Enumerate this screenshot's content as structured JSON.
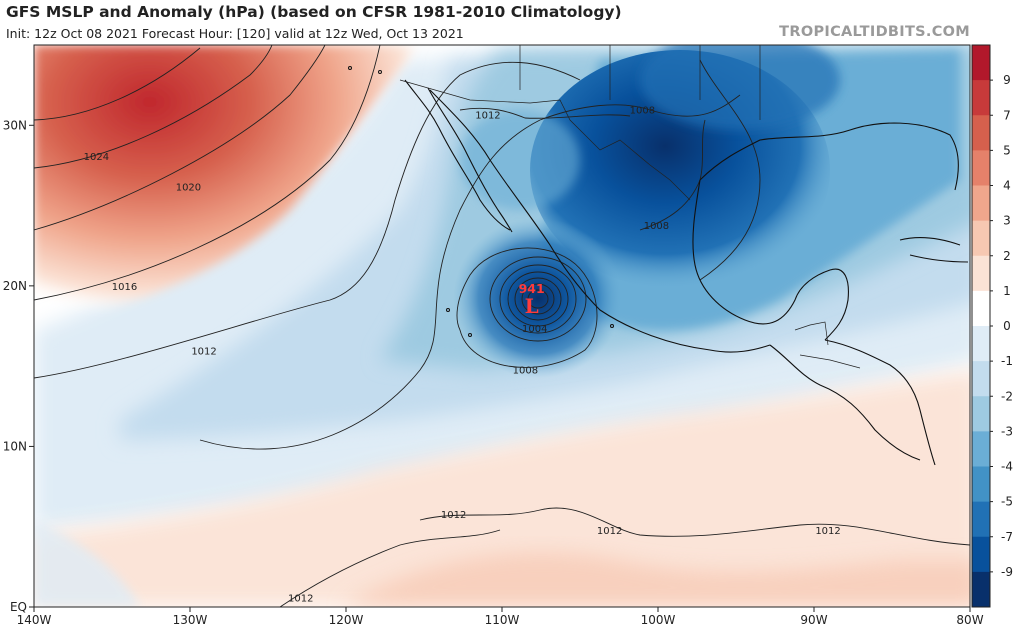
{
  "header": {
    "title": "GFS MSLP and Anomaly (hPa) (based on CFSR 1981-2010 Climatology)",
    "subtitle": "Init: 12z Oct 08 2021   Forecast Hour: [120]   valid at 12z Wed, Oct 13 2021",
    "watermark": "TROPICALTIDBITS.COM"
  },
  "map": {
    "lon_range": [
      -140,
      -80
    ],
    "lat_range": [
      0,
      35
    ],
    "lon_ticks": [
      {
        "value": -140,
        "label": "140W"
      },
      {
        "value": -130,
        "label": "130W"
      },
      {
        "value": -120,
        "label": "120W"
      },
      {
        "value": -110,
        "label": "110W"
      },
      {
        "value": -100,
        "label": "100W"
      },
      {
        "value": -90,
        "label": "90W"
      },
      {
        "value": -80,
        "label": "80W"
      }
    ],
    "lat_ticks": [
      {
        "value": 30,
        "label": "30N"
      },
      {
        "value": 20,
        "label": "20N"
      },
      {
        "value": 10,
        "label": "10N"
      },
      {
        "value": 0,
        "label": "EQ"
      }
    ],
    "cyclone": {
      "pressure": "941",
      "symbol": "L",
      "lon": -108.1,
      "lat": 19.0
    },
    "isobar_labels": [
      {
        "text": "1024",
        "lon": -136.0,
        "lat": 27.9
      },
      {
        "text": "1020",
        "lon": -130.1,
        "lat": 26.0
      },
      {
        "text": "1016",
        "lon": -134.2,
        "lat": 19.8
      },
      {
        "text": "1012",
        "lon": -129.1,
        "lat": 15.8
      },
      {
        "text": "1012",
        "lon": -110.9,
        "lat": 30.5
      },
      {
        "text": "1008",
        "lon": -101.0,
        "lat": 30.8
      },
      {
        "text": "1008",
        "lon": -100.1,
        "lat": 23.6
      },
      {
        "text": "1004",
        "lon": -107.9,
        "lat": 17.2
      },
      {
        "text": "1008",
        "lon": -108.5,
        "lat": 14.6
      },
      {
        "text": "1012",
        "lon": -113.1,
        "lat": 5.6
      },
      {
        "text": "1012",
        "lon": -103.1,
        "lat": 4.6
      },
      {
        "text": "1012",
        "lon": -89.1,
        "lat": 4.6
      },
      {
        "text": "1012",
        "lon": -122.9,
        "lat": 0.4
      }
    ],
    "colors": {
      "strong_positive": "#c0272d",
      "strong_negative": "#08306b",
      "neutral": "#ffffff",
      "land_outline": "#111111"
    }
  },
  "colorbar": {
    "ticks": [
      "9",
      "7",
      "5",
      "4",
      "3",
      "2",
      "1",
      "0",
      "-1",
      "-2",
      "-3",
      "-4",
      "-5",
      "-7",
      "-9"
    ],
    "colors": [
      "#b2182b",
      "#c73a3a",
      "#d6604d",
      "#e5816a",
      "#f0a68c",
      "#f7c8b2",
      "#fbe3d6",
      "#ffffff",
      "#dfecf6",
      "#c3dcee",
      "#9ecae1",
      "#6baed6",
      "#4292c6",
      "#2171b5",
      "#08519c",
      "#08306b"
    ]
  }
}
